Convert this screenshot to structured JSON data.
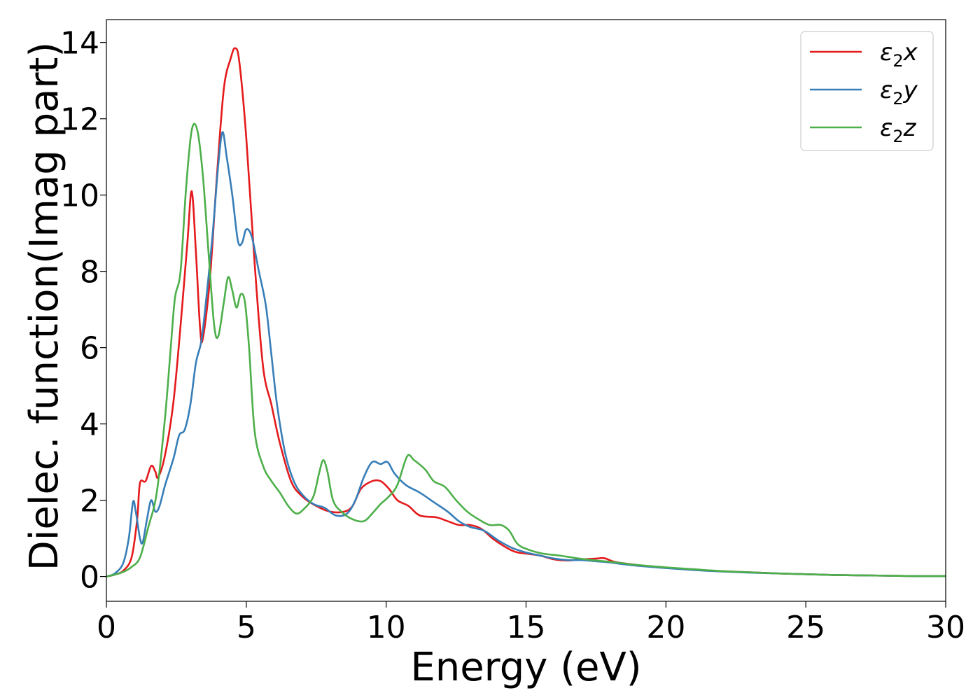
{
  "chart_data": {
    "type": "line",
    "title": "",
    "xlabel": "Energy (eV)",
    "ylabel": "Dielec. function(Imag part)",
    "xlim": [
      0,
      30
    ],
    "ylim": [
      -0.65,
      14.6
    ],
    "xticks": [
      0,
      5,
      10,
      15,
      20,
      25,
      30
    ],
    "xtick_labels": [
      "0",
      "5",
      "10",
      "15",
      "20",
      "25",
      "30"
    ],
    "yticks": [
      0,
      2,
      4,
      6,
      8,
      10,
      12,
      14
    ],
    "ytick_labels": [
      "0",
      "2",
      "4",
      "6",
      "8",
      "10",
      "12",
      "14"
    ],
    "grid": false,
    "legend_position": "top-right",
    "series": [
      {
        "name": "ε₂x",
        "legend_base": "ε",
        "legend_sub": "2",
        "legend_var": "x",
        "color": "#e41a1c",
        "points": [
          [
            0,
            0
          ],
          [
            0.3,
            0.05
          ],
          [
            0.6,
            0.15
          ],
          [
            0.9,
            0.5
          ],
          [
            1.1,
            1.5
          ],
          [
            1.2,
            2.45
          ],
          [
            1.4,
            2.5
          ],
          [
            1.6,
            2.9
          ],
          [
            1.75,
            2.75
          ],
          [
            1.85,
            2.6
          ],
          [
            2.1,
            3.2
          ],
          [
            2.4,
            4.6
          ],
          [
            2.7,
            7.0
          ],
          [
            2.9,
            8.8
          ],
          [
            3.05,
            10.1
          ],
          [
            3.2,
            8.5
          ],
          [
            3.35,
            6.5
          ],
          [
            3.45,
            6.25
          ],
          [
            3.7,
            7.8
          ],
          [
            3.95,
            10.5
          ],
          [
            4.2,
            12.8
          ],
          [
            4.45,
            13.6
          ],
          [
            4.6,
            13.85
          ],
          [
            4.75,
            13.5
          ],
          [
            5.0,
            11.5
          ],
          [
            5.3,
            8.2
          ],
          [
            5.6,
            5.5
          ],
          [
            5.9,
            4.5
          ],
          [
            6.2,
            3.5
          ],
          [
            6.6,
            2.5
          ],
          [
            7.0,
            2.1
          ],
          [
            7.5,
            1.85
          ],
          [
            8.0,
            1.7
          ],
          [
            8.5,
            1.7
          ],
          [
            8.8,
            1.85
          ],
          [
            9.1,
            2.3
          ],
          [
            9.5,
            2.5
          ],
          [
            9.8,
            2.5
          ],
          [
            10.1,
            2.3
          ],
          [
            10.4,
            2.0
          ],
          [
            10.8,
            1.85
          ],
          [
            11.2,
            1.6
          ],
          [
            11.8,
            1.55
          ],
          [
            12.2,
            1.45
          ],
          [
            12.6,
            1.35
          ],
          [
            13.0,
            1.35
          ],
          [
            13.4,
            1.25
          ],
          [
            13.8,
            1.0
          ],
          [
            14.2,
            0.8
          ],
          [
            14.6,
            0.65
          ],
          [
            15.0,
            0.6
          ],
          [
            15.5,
            0.55
          ],
          [
            16.0,
            0.45
          ],
          [
            16.5,
            0.42
          ],
          [
            17.0,
            0.45
          ],
          [
            17.5,
            0.47
          ],
          [
            17.8,
            0.48
          ],
          [
            18.2,
            0.38
          ],
          [
            19.0,
            0.3
          ],
          [
            20.0,
            0.23
          ],
          [
            21.0,
            0.18
          ],
          [
            22.0,
            0.14
          ],
          [
            23.0,
            0.11
          ],
          [
            24.0,
            0.08
          ],
          [
            25.0,
            0.06
          ],
          [
            26.0,
            0.04
          ],
          [
            27.0,
            0.03
          ],
          [
            28.0,
            0.02
          ],
          [
            29.0,
            0.01
          ],
          [
            30.0,
            0.01
          ]
        ]
      },
      {
        "name": "ε₂y",
        "legend_base": "ε",
        "legend_sub": "2",
        "legend_var": "y",
        "color": "#377eb8",
        "points": [
          [
            0,
            0
          ],
          [
            0.3,
            0.08
          ],
          [
            0.6,
            0.35
          ],
          [
            0.8,
            1.0
          ],
          [
            0.95,
            1.95
          ],
          [
            1.05,
            1.7
          ],
          [
            1.2,
            1.0
          ],
          [
            1.3,
            0.9
          ],
          [
            1.45,
            1.5
          ],
          [
            1.6,
            2.0
          ],
          [
            1.75,
            1.7
          ],
          [
            1.9,
            1.85
          ],
          [
            2.1,
            2.4
          ],
          [
            2.4,
            3.1
          ],
          [
            2.6,
            3.7
          ],
          [
            2.8,
            3.85
          ],
          [
            3.0,
            4.5
          ],
          [
            3.2,
            5.6
          ],
          [
            3.4,
            6.2
          ],
          [
            3.6,
            7.5
          ],
          [
            3.8,
            9.0
          ],
          [
            4.0,
            10.8
          ],
          [
            4.15,
            11.65
          ],
          [
            4.3,
            11.0
          ],
          [
            4.5,
            10.0
          ],
          [
            4.7,
            8.8
          ],
          [
            4.85,
            8.75
          ],
          [
            5.0,
            9.1
          ],
          [
            5.2,
            8.9
          ],
          [
            5.45,
            8.0
          ],
          [
            5.7,
            7.1
          ],
          [
            5.9,
            5.8
          ],
          [
            6.1,
            4.5
          ],
          [
            6.4,
            3.2
          ],
          [
            6.7,
            2.5
          ],
          [
            7.0,
            2.15
          ],
          [
            7.4,
            1.9
          ],
          [
            7.8,
            1.8
          ],
          [
            8.2,
            1.6
          ],
          [
            8.6,
            1.65
          ],
          [
            8.9,
            2.0
          ],
          [
            9.2,
            2.6
          ],
          [
            9.5,
            3.0
          ],
          [
            9.8,
            2.95
          ],
          [
            10.05,
            3.0
          ],
          [
            10.3,
            2.7
          ],
          [
            10.7,
            2.4
          ],
          [
            11.2,
            2.2
          ],
          [
            11.7,
            1.95
          ],
          [
            12.2,
            1.7
          ],
          [
            12.6,
            1.45
          ],
          [
            13.0,
            1.3
          ],
          [
            13.5,
            1.2
          ],
          [
            14.0,
            0.95
          ],
          [
            14.5,
            0.75
          ],
          [
            15.0,
            0.63
          ],
          [
            15.5,
            0.55
          ],
          [
            16.0,
            0.47
          ],
          [
            16.5,
            0.43
          ],
          [
            17.0,
            0.43
          ],
          [
            17.5,
            0.4
          ],
          [
            18.0,
            0.37
          ],
          [
            18.5,
            0.32
          ],
          [
            19.0,
            0.28
          ],
          [
            20.0,
            0.22
          ],
          [
            21.0,
            0.17
          ],
          [
            22.0,
            0.13
          ],
          [
            23.0,
            0.1
          ],
          [
            24.0,
            0.08
          ],
          [
            25.0,
            0.06
          ],
          [
            26.0,
            0.04
          ],
          [
            27.0,
            0.03
          ],
          [
            28.0,
            0.02
          ],
          [
            29.0,
            0.01
          ],
          [
            30.0,
            0.01
          ]
        ]
      },
      {
        "name": "ε₂z",
        "legend_base": "ε",
        "legend_sub": "2",
        "legend_var": "z",
        "color": "#4daf4a",
        "points": [
          [
            0,
            0
          ],
          [
            0.3,
            0.05
          ],
          [
            0.6,
            0.12
          ],
          [
            0.9,
            0.25
          ],
          [
            1.2,
            0.5
          ],
          [
            1.5,
            1.3
          ],
          [
            1.8,
            2.2
          ],
          [
            2.1,
            4.2
          ],
          [
            2.3,
            6.0
          ],
          [
            2.45,
            7.3
          ],
          [
            2.65,
            8.0
          ],
          [
            2.85,
            10.2
          ],
          [
            3.05,
            11.7
          ],
          [
            3.25,
            11.7
          ],
          [
            3.45,
            10.5
          ],
          [
            3.65,
            8.5
          ],
          [
            3.85,
            6.6
          ],
          [
            4.0,
            6.3
          ],
          [
            4.2,
            7.2
          ],
          [
            4.35,
            7.85
          ],
          [
            4.5,
            7.5
          ],
          [
            4.65,
            7.05
          ],
          [
            4.8,
            7.4
          ],
          [
            4.95,
            7.2
          ],
          [
            5.1,
            6.0
          ],
          [
            5.3,
            3.8
          ],
          [
            5.6,
            2.9
          ],
          [
            5.9,
            2.5
          ],
          [
            6.2,
            2.2
          ],
          [
            6.5,
            1.85
          ],
          [
            6.8,
            1.65
          ],
          [
            7.1,
            1.8
          ],
          [
            7.4,
            2.1
          ],
          [
            7.6,
            2.7
          ],
          [
            7.75,
            3.05
          ],
          [
            7.9,
            2.75
          ],
          [
            8.1,
            2.0
          ],
          [
            8.4,
            1.7
          ],
          [
            8.8,
            1.5
          ],
          [
            9.2,
            1.45
          ],
          [
            9.5,
            1.65
          ],
          [
            9.8,
            1.9
          ],
          [
            10.1,
            2.1
          ],
          [
            10.4,
            2.4
          ],
          [
            10.75,
            3.15
          ],
          [
            11.0,
            3.05
          ],
          [
            11.4,
            2.8
          ],
          [
            11.7,
            2.5
          ],
          [
            12.1,
            2.35
          ],
          [
            12.5,
            2.0
          ],
          [
            12.9,
            1.7
          ],
          [
            13.3,
            1.5
          ],
          [
            13.7,
            1.35
          ],
          [
            14.1,
            1.35
          ],
          [
            14.4,
            1.2
          ],
          [
            14.7,
            0.85
          ],
          [
            15.1,
            0.7
          ],
          [
            15.6,
            0.6
          ],
          [
            16.2,
            0.55
          ],
          [
            16.8,
            0.48
          ],
          [
            17.5,
            0.42
          ],
          [
            18.2,
            0.37
          ],
          [
            19.0,
            0.3
          ],
          [
            20.0,
            0.24
          ],
          [
            21.0,
            0.19
          ],
          [
            22.0,
            0.14
          ],
          [
            23.0,
            0.11
          ],
          [
            24.0,
            0.08
          ],
          [
            25.0,
            0.06
          ],
          [
            26.0,
            0.04
          ],
          [
            27.0,
            0.03
          ],
          [
            28.0,
            0.02
          ],
          [
            29.0,
            0.01
          ],
          [
            30.0,
            0.01
          ]
        ]
      }
    ]
  }
}
